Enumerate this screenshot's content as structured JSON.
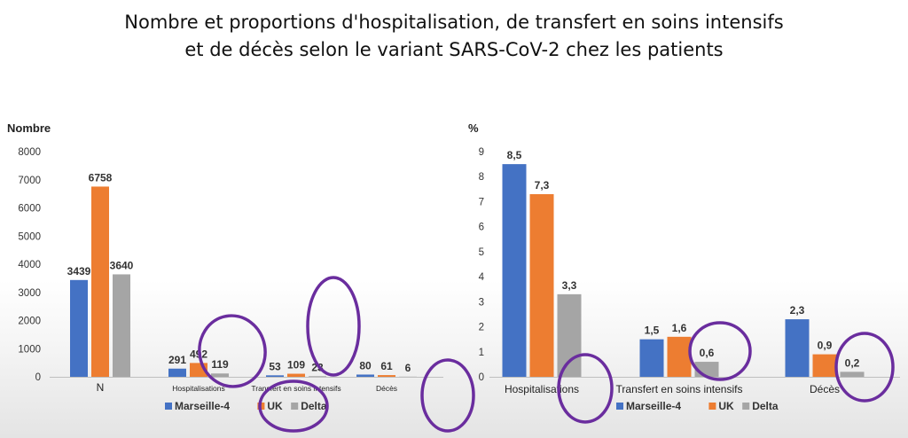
{
  "title": {
    "line1": "Nombre et proportions d'hospitalisation, de transfert en soins intensifs",
    "line2": "et de décès selon le variant SARS-CoV-2 chez les patients"
  },
  "colors": {
    "Marseille-4": "#4472c4",
    "UK": "#ed7d31",
    "Delta": "#a5a5a5",
    "annotation": "#6a2d9e"
  },
  "chart_data": [
    {
      "type": "bar",
      "ylabel": "Nombre",
      "ylim": [
        0,
        8000
      ],
      "yticks": [
        "0",
        "1000",
        "2000",
        "3000",
        "4000",
        "5000",
        "6000",
        "7000",
        "8000"
      ],
      "categories": [
        "N",
        "Hospitalisations",
        "Transfert en soins intensifs",
        "Décès"
      ],
      "series": [
        {
          "name": "Marseille-4",
          "values": [
            3439,
            291,
            53,
            80
          ],
          "labels": [
            "3439",
            "291",
            "53",
            "80"
          ]
        },
        {
          "name": "UK",
          "values": [
            6758,
            492,
            109,
            61
          ],
          "labels": [
            "6758",
            "492",
            "109",
            "61"
          ]
        },
        {
          "name": "Delta",
          "values": [
            3640,
            119,
            23,
            6
          ],
          "labels": [
            "3640",
            "119",
            "23",
            "6"
          ]
        }
      ],
      "legend": "bottom",
      "grid": false
    },
    {
      "type": "bar",
      "ylabel": "%",
      "ylim": [
        0,
        9
      ],
      "yticks": [
        "0",
        "1",
        "2",
        "3",
        "4",
        "5",
        "6",
        "7",
        "8",
        "9"
      ],
      "categories": [
        "Hospitalisations",
        "Transfert en soins intensifs",
        "Décès"
      ],
      "series": [
        {
          "name": "Marseille-4",
          "values": [
            8.5,
            1.5,
            2.3
          ],
          "labels": [
            "8,5",
            "1,5",
            "2,3"
          ]
        },
        {
          "name": "UK",
          "values": [
            7.3,
            1.6,
            0.9
          ],
          "labels": [
            "7,3",
            "1,6",
            "0,9"
          ]
        },
        {
          "name": "Delta",
          "values": [
            3.3,
            0.6,
            0.2
          ],
          "labels": [
            "3,3",
            "0,6",
            "0,2"
          ]
        }
      ],
      "legend": "bottom",
      "grid": false
    }
  ]
}
